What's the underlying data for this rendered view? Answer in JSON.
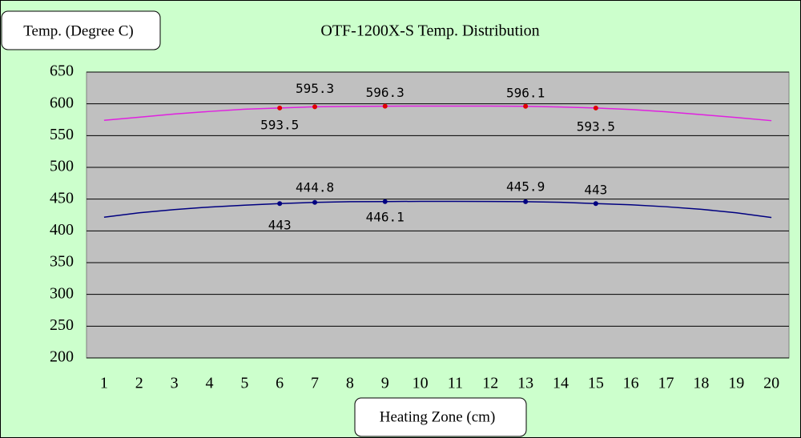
{
  "chart_data": {
    "type": "line",
    "title": "OTF-1200X-S Temp. Distribution",
    "y_label": "Temp. (Degree C)",
    "x_label": "Heating Zone (cm)",
    "x": [
      1,
      2,
      3,
      4,
      5,
      6,
      7,
      8,
      9,
      10,
      11,
      12,
      13,
      14,
      15,
      16,
      17,
      18,
      19,
      20
    ],
    "xlim": [
      0.5,
      20.5
    ],
    "xticks": [
      1,
      2,
      3,
      4,
      5,
      6,
      7,
      8,
      9,
      10,
      11,
      12,
      13,
      14,
      15,
      16,
      17,
      18,
      19,
      20
    ],
    "ylim": [
      200,
      650
    ],
    "yticks": [
      200,
      250,
      300,
      350,
      400,
      450,
      500,
      550,
      600,
      650
    ],
    "grid": true,
    "series": [
      {
        "color": "#e020e0",
        "values": [
          574,
          579,
          584,
          588,
          591.5,
          593.5,
          595.3,
          596,
          596.3,
          596.5,
          596.5,
          596.4,
          596.1,
          595,
          593.5,
          591,
          587.5,
          583,
          578.5,
          573.5
        ],
        "points": {
          "color": "#e00000",
          "x": [
            6,
            7,
            9,
            13,
            15
          ],
          "values": [
            593.5,
            595.3,
            596.3,
            596.1,
            593.5
          ]
        }
      },
      {
        "color": "#000080",
        "values": [
          421.5,
          428.5,
          433.5,
          437.5,
          440.5,
          443,
          444.8,
          446,
          446.1,
          446.5,
          446.5,
          446.3,
          445.9,
          445,
          443,
          441,
          438,
          434,
          428.5,
          421
        ],
        "points": {
          "color": "#000080",
          "x": [
            6,
            7,
            9,
            13,
            15
          ],
          "values": [
            443,
            444.8,
            446.1,
            445.9,
            443
          ]
        }
      }
    ]
  }
}
